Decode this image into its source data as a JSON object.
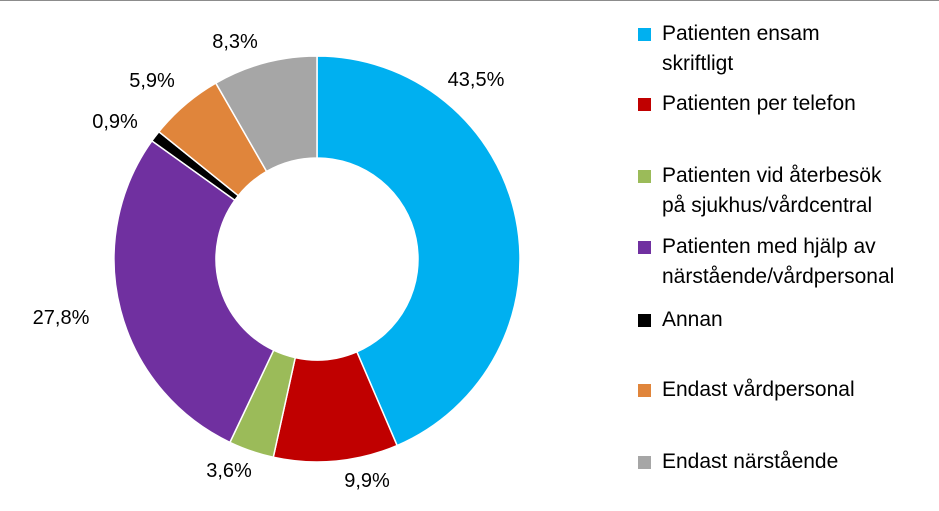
{
  "chart_data": {
    "type": "pie",
    "variant": "donut",
    "legend_position": "right",
    "data_labels_shown": true,
    "slices": [
      {
        "label": "Patienten ensam skriftligt",
        "value": 43.5,
        "value_label": "43,5%",
        "color": "#00B0F0"
      },
      {
        "label": "Patienten per telefon",
        "value": 9.9,
        "value_label": "9,9%",
        "color": "#C00000"
      },
      {
        "label": "Patienten vid återbesök på sjukhus/vårdcentral",
        "value": 3.6,
        "value_label": "3,6%",
        "color": "#9BBB59"
      },
      {
        "label": "Patienten med hjälp av närstående/vårdpersonal",
        "value": 27.8,
        "value_label": "27,8%",
        "color": "#7030A0"
      },
      {
        "label": "Annan",
        "value": 0.9,
        "value_label": "0,9%",
        "color": "#000000"
      },
      {
        "label": "Endast vårdpersonal",
        "value": 5.9,
        "value_label": "5,9%",
        "color": "#E0853B"
      },
      {
        "label": "Endast närstående",
        "value": 8.3,
        "value_label": "8,3%",
        "color": "#A6A6A6"
      }
    ]
  },
  "legend": {
    "items": [
      {
        "line1": "Patienten ensam",
        "line2": "skriftligt"
      },
      {
        "line1": "Patienten per telefon",
        "line2": ""
      },
      {
        "line1": "Patienten vid återbesök",
        "line2": "på sjukhus/vårdcentral"
      },
      {
        "line1": "Patienten med hjälp av",
        "line2": "närstående/vårdpersonal"
      },
      {
        "line1": "Annan",
        "line2": ""
      },
      {
        "line1": "Endast vårdpersonal",
        "line2": ""
      },
      {
        "line1": "Endast närstående",
        "line2": ""
      }
    ]
  }
}
